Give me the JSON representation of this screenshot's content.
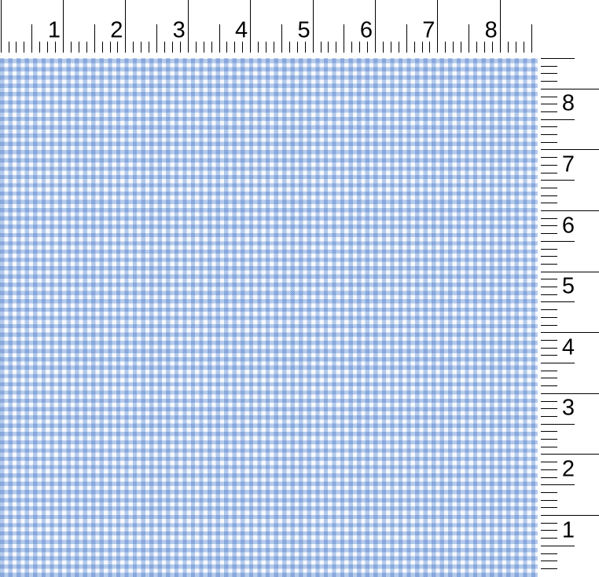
{
  "fabric": {
    "name": "blue-gingham-check-swatch",
    "colors": {
      "base": "#ffffff",
      "stripe": "#a9c3e9",
      "overlap": "#7298d4"
    }
  },
  "rulers": {
    "top": {
      "orientation": "horizontal",
      "labels": [
        "1",
        "2",
        "3",
        "4",
        "5",
        "6",
        "7",
        "8"
      ]
    },
    "right": {
      "orientation": "vertical",
      "labels": [
        "8",
        "7",
        "6",
        "5",
        "4",
        "3",
        "2",
        "1"
      ]
    }
  }
}
